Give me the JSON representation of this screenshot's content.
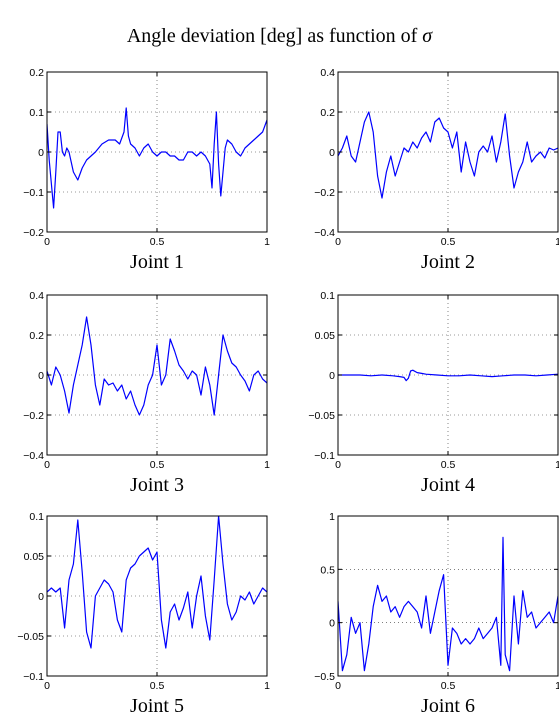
{
  "figure": {
    "title_prefix": "Angle deviation [deg] as function of ",
    "title_symbol": "σ"
  },
  "chart_data": [
    {
      "type": "line",
      "xlabel": "Joint 1",
      "xlim": [
        0,
        1
      ],
      "ylim": [
        -0.2,
        0.2
      ],
      "xticks": [
        0,
        0.5,
        1
      ],
      "xtick_labels": [
        "0",
        "0.5",
        "1"
      ],
      "yticks": [
        -0.2,
        -0.1,
        0,
        0.1,
        0.2
      ],
      "ytick_labels": [
        "−0.2",
        "−0.1",
        "0",
        "0.1",
        "0.2"
      ],
      "grid": true,
      "series": [
        {
          "color": "#0000ff",
          "x": [
            0,
            0.01,
            0.02,
            0.03,
            0.04,
            0.05,
            0.06,
            0.07,
            0.08,
            0.09,
            0.1,
            0.12,
            0.14,
            0.16,
            0.18,
            0.2,
            0.22,
            0.25,
            0.28,
            0.31,
            0.33,
            0.35,
            0.36,
            0.37,
            0.38,
            0.4,
            0.42,
            0.44,
            0.46,
            0.48,
            0.5,
            0.52,
            0.54,
            0.56,
            0.58,
            0.6,
            0.62,
            0.64,
            0.66,
            0.68,
            0.7,
            0.72,
            0.74,
            0.75,
            0.76,
            0.77,
            0.78,
            0.79,
            0.8,
            0.81,
            0.82,
            0.84,
            0.86,
            0.88,
            0.9,
            0.92,
            0.94,
            0.96,
            0.98,
            1.0
          ],
          "y": [
            0.07,
            -0.02,
            -0.08,
            -0.14,
            -0.05,
            0.05,
            0.05,
            0.0,
            -0.01,
            0.01,
            0.0,
            -0.05,
            -0.07,
            -0.04,
            -0.02,
            -0.01,
            0.0,
            0.02,
            0.03,
            0.03,
            0.02,
            0.05,
            0.11,
            0.04,
            0.02,
            0.01,
            -0.01,
            0.01,
            0.02,
            0.0,
            -0.01,
            0.0,
            0.0,
            -0.01,
            -0.01,
            -0.02,
            -0.02,
            0.0,
            0.0,
            -0.01,
            0.0,
            -0.01,
            -0.03,
            -0.09,
            0.02,
            0.1,
            -0.03,
            -0.11,
            -0.05,
            0.01,
            0.03,
            0.02,
            0.0,
            -0.01,
            0.01,
            0.02,
            0.03,
            0.04,
            0.05,
            0.08
          ]
        }
      ]
    },
    {
      "type": "line",
      "xlabel": "Joint 2",
      "xlim": [
        0,
        1
      ],
      "ylim": [
        -0.4,
        0.4
      ],
      "xticks": [
        0,
        0.5,
        1
      ],
      "xtick_labels": [
        "0",
        "0.5",
        "1"
      ],
      "yticks": [
        -0.4,
        -0.2,
        0,
        0.2,
        0.4
      ],
      "ytick_labels": [
        "−0.4",
        "−0.2",
        "0",
        "0.2",
        "0.4"
      ],
      "grid": true,
      "series": [
        {
          "color": "#0000ff",
          "x": [
            0,
            0.02,
            0.04,
            0.06,
            0.08,
            0.1,
            0.12,
            0.14,
            0.16,
            0.18,
            0.2,
            0.22,
            0.24,
            0.26,
            0.28,
            0.3,
            0.32,
            0.34,
            0.36,
            0.38,
            0.4,
            0.42,
            0.44,
            0.46,
            0.48,
            0.5,
            0.52,
            0.54,
            0.56,
            0.58,
            0.6,
            0.62,
            0.64,
            0.66,
            0.68,
            0.7,
            0.72,
            0.74,
            0.76,
            0.78,
            0.8,
            0.82,
            0.84,
            0.86,
            0.88,
            0.9,
            0.92,
            0.94,
            0.96,
            0.98,
            1.0
          ],
          "y": [
            -0.02,
            0.02,
            0.08,
            -0.02,
            -0.05,
            0.05,
            0.15,
            0.2,
            0.1,
            -0.12,
            -0.23,
            -0.1,
            -0.02,
            -0.12,
            -0.05,
            0.02,
            0.0,
            0.05,
            0.02,
            0.07,
            0.1,
            0.05,
            0.15,
            0.17,
            0.12,
            0.1,
            0.02,
            0.1,
            -0.1,
            0.05,
            -0.05,
            -0.12,
            0.0,
            0.03,
            0.0,
            0.08,
            -0.05,
            0.05,
            0.19,
            -0.02,
            -0.18,
            -0.1,
            -0.05,
            0.05,
            -0.05,
            -0.02,
            0.0,
            -0.03,
            0.02,
            0.01,
            0.02
          ]
        }
      ]
    },
    {
      "type": "line",
      "xlabel": "Joint 3",
      "xlim": [
        0,
        1
      ],
      "ylim": [
        -0.4,
        0.4
      ],
      "xticks": [
        0,
        0.5,
        1
      ],
      "xtick_labels": [
        "0",
        "0.5",
        "1"
      ],
      "yticks": [
        -0.4,
        -0.2,
        0,
        0.2,
        0.4
      ],
      "ytick_labels": [
        "−0.4",
        "−0.2",
        "0",
        "0.2",
        "0.4"
      ],
      "grid": true,
      "series": [
        {
          "color": "#0000ff",
          "x": [
            0,
            0.02,
            0.04,
            0.06,
            0.08,
            0.1,
            0.12,
            0.14,
            0.16,
            0.18,
            0.2,
            0.22,
            0.24,
            0.26,
            0.28,
            0.3,
            0.32,
            0.34,
            0.36,
            0.38,
            0.4,
            0.42,
            0.44,
            0.46,
            0.48,
            0.5,
            0.52,
            0.54,
            0.56,
            0.58,
            0.6,
            0.62,
            0.64,
            0.66,
            0.68,
            0.7,
            0.72,
            0.74,
            0.76,
            0.78,
            0.8,
            0.82,
            0.84,
            0.86,
            0.88,
            0.9,
            0.92,
            0.94,
            0.96,
            0.98,
            1.0
          ],
          "y": [
            0.02,
            -0.05,
            0.04,
            0.0,
            -0.08,
            -0.19,
            -0.05,
            0.05,
            0.15,
            0.29,
            0.15,
            -0.05,
            -0.15,
            -0.02,
            -0.05,
            -0.04,
            -0.08,
            -0.05,
            -0.12,
            -0.08,
            -0.15,
            -0.2,
            -0.15,
            -0.05,
            0.0,
            0.15,
            -0.05,
            0.0,
            0.18,
            0.12,
            0.05,
            0.02,
            -0.02,
            0.02,
            0.0,
            -0.1,
            0.04,
            -0.05,
            -0.2,
            0.0,
            0.2,
            0.12,
            0.06,
            0.04,
            0.0,
            -0.03,
            -0.08,
            0.0,
            0.02,
            -0.02,
            -0.04
          ]
        }
      ]
    },
    {
      "type": "line",
      "xlabel": "Joint 4",
      "xlim": [
        0,
        1
      ],
      "ylim": [
        -0.1,
        0.1
      ],
      "xticks": [
        0,
        0.5,
        1
      ],
      "xtick_labels": [
        "0",
        "0.5",
        "1"
      ],
      "yticks": [
        -0.1,
        -0.05,
        0,
        0.05,
        0.1
      ],
      "ytick_labels": [
        "−0.1",
        "−0.05",
        "0",
        "0.05",
        "0.1"
      ],
      "grid": true,
      "series": [
        {
          "color": "#0000ff",
          "x": [
            0,
            0.05,
            0.1,
            0.15,
            0.2,
            0.25,
            0.28,
            0.3,
            0.31,
            0.32,
            0.33,
            0.34,
            0.36,
            0.38,
            0.4,
            0.45,
            0.5,
            0.55,
            0.6,
            0.65,
            0.7,
            0.75,
            0.8,
            0.85,
            0.9,
            0.95,
            1.0
          ],
          "y": [
            0.0,
            0.0,
            0.0,
            -0.001,
            0.0,
            -0.001,
            -0.002,
            -0.003,
            -0.007,
            -0.004,
            0.005,
            0.006,
            0.003,
            0.002,
            0.001,
            0.0,
            -0.001,
            -0.001,
            0.0,
            -0.001,
            -0.002,
            -0.001,
            0.0,
            0.0,
            -0.001,
            0.0,
            0.001
          ]
        }
      ]
    },
    {
      "type": "line",
      "xlabel": "Joint 5",
      "xlim": [
        0,
        1
      ],
      "ylim": [
        -0.1,
        0.1
      ],
      "xticks": [
        0,
        0.5,
        1
      ],
      "xtick_labels": [
        "0",
        "0.5",
        "1"
      ],
      "yticks": [
        -0.1,
        -0.05,
        0,
        0.05,
        0.1
      ],
      "ytick_labels": [
        "−0.1",
        "−0.05",
        "0",
        "0.05",
        "0.1"
      ],
      "grid": true,
      "series": [
        {
          "color": "#0000ff",
          "x": [
            0,
            0.02,
            0.04,
            0.06,
            0.08,
            0.1,
            0.12,
            0.14,
            0.16,
            0.18,
            0.2,
            0.22,
            0.24,
            0.26,
            0.28,
            0.3,
            0.32,
            0.34,
            0.36,
            0.38,
            0.4,
            0.42,
            0.44,
            0.46,
            0.48,
            0.5,
            0.52,
            0.54,
            0.56,
            0.58,
            0.6,
            0.62,
            0.64,
            0.66,
            0.68,
            0.7,
            0.72,
            0.74,
            0.76,
            0.78,
            0.8,
            0.82,
            0.84,
            0.86,
            0.88,
            0.9,
            0.92,
            0.94,
            0.96,
            0.98,
            1.0
          ],
          "y": [
            0.005,
            0.01,
            0.005,
            0.01,
            -0.04,
            0.02,
            0.04,
            0.095,
            0.03,
            -0.045,
            -0.065,
            0.0,
            0.01,
            0.02,
            0.015,
            0.005,
            -0.03,
            -0.045,
            0.02,
            0.035,
            0.04,
            0.05,
            0.055,
            0.06,
            0.045,
            0.055,
            -0.03,
            -0.065,
            -0.02,
            -0.01,
            -0.03,
            -0.015,
            0.005,
            -0.04,
            0.0,
            0.025,
            -0.025,
            -0.055,
            0.02,
            0.1,
            0.04,
            -0.01,
            -0.03,
            -0.02,
            0.0,
            -0.005,
            0.005,
            -0.01,
            0.0,
            0.01,
            0.005
          ]
        }
      ]
    },
    {
      "type": "line",
      "xlabel": "Joint 6",
      "xlim": [
        0,
        1
      ],
      "ylim": [
        -0.5,
        1
      ],
      "xticks": [
        0,
        0.5,
        1
      ],
      "xtick_labels": [
        "0",
        "0.5",
        "1"
      ],
      "yticks": [
        -0.5,
        0,
        0.5,
        1
      ],
      "ytick_labels": [
        "−0.5",
        "0",
        "0.5",
        "1"
      ],
      "grid": true,
      "series": [
        {
          "color": "#0000ff",
          "x": [
            0,
            0.02,
            0.04,
            0.06,
            0.08,
            0.1,
            0.12,
            0.14,
            0.16,
            0.18,
            0.2,
            0.22,
            0.24,
            0.26,
            0.28,
            0.3,
            0.32,
            0.34,
            0.36,
            0.38,
            0.4,
            0.42,
            0.44,
            0.46,
            0.48,
            0.5,
            0.52,
            0.54,
            0.56,
            0.58,
            0.6,
            0.62,
            0.64,
            0.66,
            0.68,
            0.7,
            0.72,
            0.74,
            0.75,
            0.76,
            0.78,
            0.8,
            0.82,
            0.84,
            0.86,
            0.88,
            0.9,
            0.92,
            0.94,
            0.96,
            0.98,
            1.0
          ],
          "y": [
            0.2,
            -0.45,
            -0.3,
            0.05,
            -0.1,
            0.0,
            -0.45,
            -0.2,
            0.15,
            0.35,
            0.2,
            0.25,
            0.1,
            0.15,
            0.05,
            0.15,
            0.2,
            0.15,
            0.1,
            -0.05,
            0.25,
            -0.1,
            0.1,
            0.3,
            0.45,
            -0.4,
            -0.05,
            -0.1,
            -0.2,
            -0.15,
            -0.2,
            -0.15,
            -0.05,
            -0.15,
            -0.1,
            -0.05,
            0.05,
            -0.4,
            0.8,
            -0.3,
            -0.45,
            0.25,
            -0.2,
            0.3,
            0.05,
            0.1,
            -0.05,
            0.0,
            0.05,
            0.1,
            0.0,
            0.25
          ]
        }
      ]
    }
  ]
}
